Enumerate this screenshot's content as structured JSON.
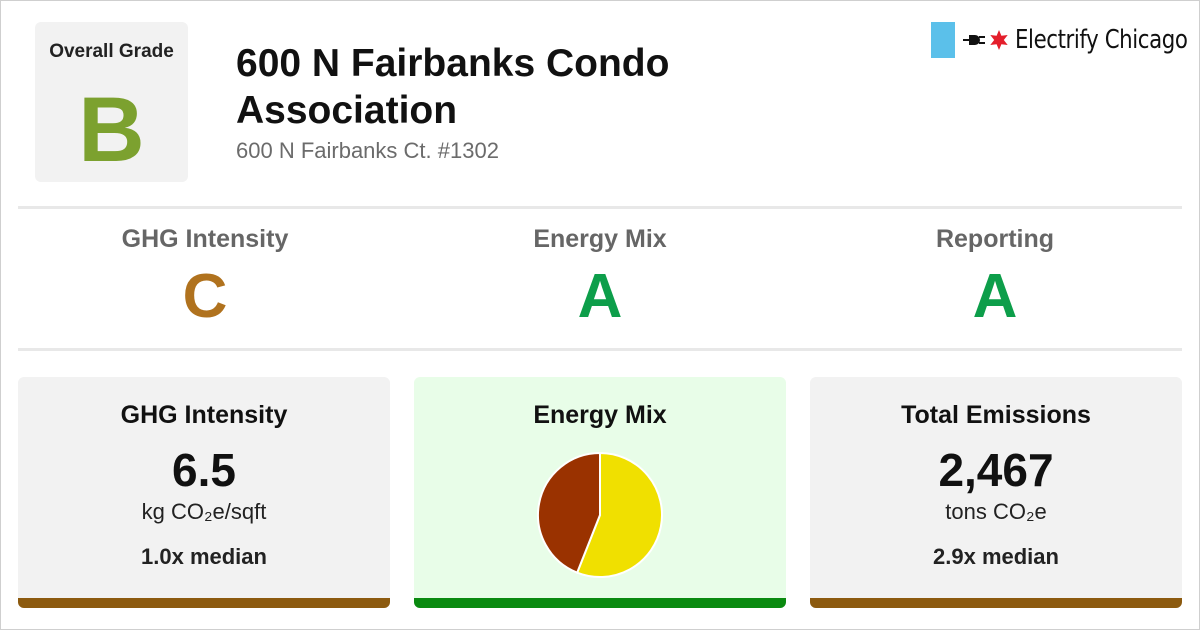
{
  "building": {
    "name": "600 N Fairbanks Condo Association",
    "address": "600 N Fairbanks Ct. #1302"
  },
  "overall_grade": {
    "label": "Overall Grade",
    "letter": "B",
    "color": "#7ca12f"
  },
  "logo": {
    "brand": "Electrify Chicago",
    "flag_color": "#5bc0ea",
    "star_color": "#e41e2b",
    "icons": [
      "plug-icon",
      "star-icon"
    ]
  },
  "sub_grades": [
    {
      "label": "GHG Intensity",
      "letter": "C",
      "color": "#b0721e"
    },
    {
      "label": "Energy Mix",
      "letter": "A",
      "color": "#0d9e4a"
    },
    {
      "label": "Reporting",
      "letter": "A",
      "color": "#0d9e4a"
    }
  ],
  "cards": {
    "ghg_intensity": {
      "title": "GHG Intensity",
      "value": "6.5",
      "unit": "kg CO₂e/sqft",
      "median": "1.0x median",
      "bar_color": "#8c5a0f"
    },
    "energy_mix": {
      "title": "Energy Mix",
      "bar_color": "#0a8a10"
    },
    "total_emissions": {
      "title": "Total Emissions",
      "value": "2,467",
      "unit": "tons CO₂e",
      "median": "2.9x median",
      "bar_color": "#8c5a0f"
    }
  },
  "chart_data": {
    "type": "pie",
    "values": [
      56,
      44
    ],
    "colors": [
      "#f0e000",
      "#9a3200"
    ]
  }
}
